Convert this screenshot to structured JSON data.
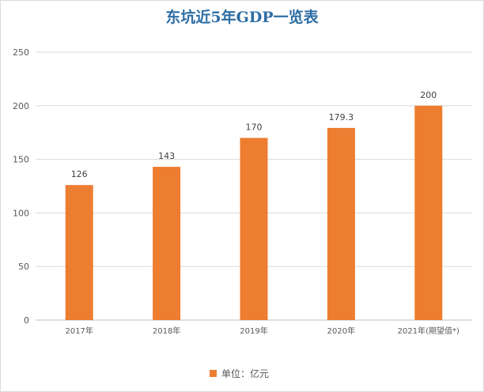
{
  "chart_data": {
    "type": "bar",
    "title": "东坑近5年GDP一览表",
    "categories": [
      "2017年",
      "2018年",
      "2019年",
      "2020年",
      "2021年(期望值*)"
    ],
    "series": [
      {
        "name": "单位：亿元",
        "values": [
          126,
          143,
          170,
          179.3,
          200
        ],
        "color": "#ed7d31"
      }
    ],
    "data_labels": [
      "126",
      "143",
      "170",
      "179.3",
      "200"
    ],
    "y_ticks": [
      "0",
      "50",
      "100",
      "150",
      "200",
      "250"
    ],
    "ylim": [
      0,
      250
    ],
    "grid": true,
    "legend_position": "bottom"
  }
}
